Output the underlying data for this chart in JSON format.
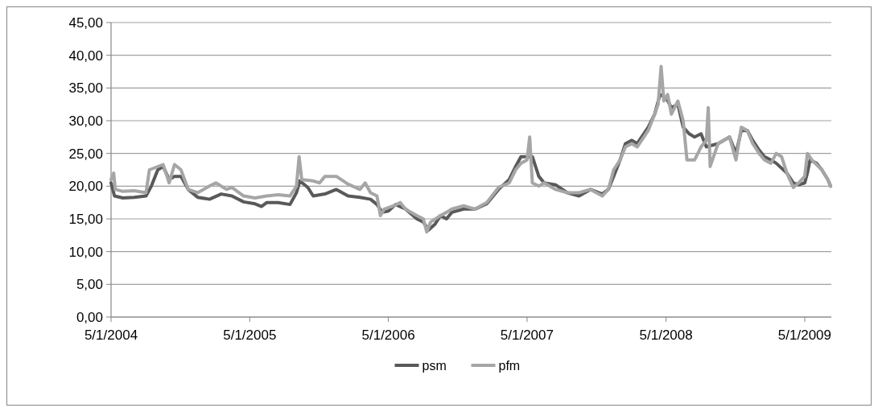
{
  "chart_data": {
    "type": "line",
    "grid": "y",
    "legend": "bottom",
    "marker": "none",
    "line_style": "solid",
    "xlim": [
      "2004-05-01",
      "2009-07-10"
    ],
    "xticks": [
      {
        "value": "2004-05-01",
        "label": "5/1/2004"
      },
      {
        "value": "2005-05-01",
        "label": "5/1/2005"
      },
      {
        "value": "2006-05-01",
        "label": "5/1/2006"
      },
      {
        "value": "2007-05-01",
        "label": "5/1/2007"
      },
      {
        "value": "2008-05-01",
        "label": "5/1/2008"
      },
      {
        "value": "2009-05-01",
        "label": "5/1/2009"
      }
    ],
    "ylim": [
      0,
      45
    ],
    "yticks": [
      {
        "value": 0,
        "label": "0,00"
      },
      {
        "value": 5,
        "label": "5,00"
      },
      {
        "value": 10,
        "label": "10,00"
      },
      {
        "value": 15,
        "label": "15,00"
      },
      {
        "value": 20,
        "label": "20,00"
      },
      {
        "value": 25,
        "label": "25,00"
      },
      {
        "value": 30,
        "label": "30,00"
      },
      {
        "value": 35,
        "label": "35,00"
      },
      {
        "value": 40,
        "label": "40,00"
      },
      {
        "value": 45,
        "label": "45,00"
      }
    ],
    "series": [
      {
        "name": "psm",
        "color": "#595959",
        "x": [
          "2004-05-01",
          "2004-05-10",
          "2004-06-01",
          "2004-07-01",
          "2004-08-01",
          "2004-08-15",
          "2004-09-01",
          "2004-09-15",
          "2004-10-01",
          "2004-10-15",
          "2004-11-01",
          "2004-11-20",
          "2004-12-15",
          "2005-01-15",
          "2005-02-15",
          "2005-03-15",
          "2005-04-15",
          "2005-05-15",
          "2005-06-01",
          "2005-06-15",
          "2005-07-15",
          "2005-08-15",
          "2005-09-01",
          "2005-09-10",
          "2005-10-01",
          "2005-10-15",
          "2005-11-15",
          "2005-12-15",
          "2006-01-15",
          "2006-02-15",
          "2006-03-15",
          "2006-04-01",
          "2006-04-15",
          "2006-05-01",
          "2006-05-20",
          "2006-06-15",
          "2006-07-15",
          "2006-08-01",
          "2006-08-15",
          "2006-09-01",
          "2006-09-15",
          "2006-10-01",
          "2006-10-15",
          "2006-11-15",
          "2006-12-15",
          "2007-01-15",
          "2007-02-15",
          "2007-03-15",
          "2007-04-01",
          "2007-04-15",
          "2007-05-01",
          "2007-05-15",
          "2007-06-01",
          "2007-06-15",
          "2007-07-15",
          "2007-08-15",
          "2007-09-15",
          "2007-10-15",
          "2007-11-15",
          "2007-12-01",
          "2007-12-15",
          "2008-01-01",
          "2008-01-15",
          "2008-02-01",
          "2008-02-15",
          "2008-03-15",
          "2008-04-01",
          "2008-04-15",
          "2008-05-01",
          "2008-05-15",
          "2008-06-01",
          "2008-06-15",
          "2008-07-01",
          "2008-07-15",
          "2008-08-01",
          "2008-08-15",
          "2008-09-15",
          "2008-10-15",
          "2008-11-01",
          "2008-11-15",
          "2008-12-01",
          "2008-12-15",
          "2009-01-01",
          "2009-01-15",
          "2009-02-01",
          "2009-02-15",
          "2009-03-15",
          "2009-04-01",
          "2009-04-15",
          "2009-05-01",
          "2009-05-08",
          "2009-05-15",
          "2009-06-01",
          "2009-06-15",
          "2009-07-01",
          "2009-07-08"
        ],
        "values": [
          20.5,
          18.5,
          18.2,
          18.3,
          18.5,
          20,
          22.5,
          23,
          21,
          21.5,
          21.5,
          19.5,
          18.3,
          18,
          18.8,
          18.5,
          17.6,
          17.3,
          16.9,
          17.5,
          17.5,
          17.2,
          19,
          20.8,
          19.8,
          18.5,
          18.8,
          19.5,
          18.5,
          18.3,
          18,
          17.2,
          16,
          16.2,
          17.2,
          16.5,
          15,
          14.5,
          13.3,
          14.2,
          15.5,
          15,
          16,
          16.5,
          16.5,
          17.3,
          19.5,
          21,
          23,
          24.5,
          24.5,
          24.5,
          21.5,
          20.5,
          20.2,
          19,
          18.5,
          19.5,
          18.8,
          19.5,
          21.5,
          24,
          26.5,
          27,
          26.5,
          29,
          31,
          34,
          33.5,
          32,
          32.5,
          29,
          28,
          27.5,
          28,
          26,
          26.5,
          27.5,
          25,
          28.5,
          28.5,
          27,
          25.5,
          24.5,
          24,
          23.5,
          22,
          20.5,
          20.2,
          20.5,
          22,
          24,
          23.5,
          22.5,
          21,
          20
        ]
      },
      {
        "name": "pfm",
        "color": "#a6a6a6",
        "x": [
          "2004-05-01",
          "2004-05-08",
          "2004-05-12",
          "2004-06-01",
          "2004-07-01",
          "2004-08-01",
          "2004-08-10",
          "2004-09-15",
          "2004-10-01",
          "2004-10-15",
          "2004-11-01",
          "2004-11-20",
          "2004-12-15",
          "2005-01-15",
          "2005-02-01",
          "2005-03-01",
          "2005-03-15",
          "2005-04-15",
          "2005-05-15",
          "2005-06-15",
          "2005-07-15",
          "2005-08-15",
          "2005-09-01",
          "2005-09-08",
          "2005-09-15",
          "2005-10-15",
          "2005-11-01",
          "2005-11-15",
          "2005-12-15",
          "2006-01-15",
          "2006-02-15",
          "2006-03-01",
          "2006-03-15",
          "2006-04-01",
          "2006-04-10",
          "2006-04-20",
          "2006-05-15",
          "2006-06-01",
          "2006-06-15",
          "2006-07-15",
          "2006-08-01",
          "2006-08-10",
          "2006-08-20",
          "2006-09-15",
          "2006-10-01",
          "2006-10-15",
          "2006-11-15",
          "2006-12-15",
          "2007-01-15",
          "2007-02-15",
          "2007-03-15",
          "2007-04-01",
          "2007-04-15",
          "2007-05-01",
          "2007-05-08",
          "2007-05-15",
          "2007-06-01",
          "2007-06-15",
          "2007-07-15",
          "2007-08-15",
          "2007-09-15",
          "2007-10-15",
          "2007-11-15",
          "2007-12-01",
          "2007-12-15",
          "2008-01-01",
          "2008-01-15",
          "2008-02-01",
          "2008-02-15",
          "2008-03-15",
          "2008-04-01",
          "2008-04-10",
          "2008-04-18",
          "2008-04-25",
          "2008-05-05",
          "2008-05-15",
          "2008-06-01",
          "2008-06-15",
          "2008-06-25",
          "2008-07-15",
          "2008-08-01",
          "2008-08-15",
          "2008-08-20",
          "2008-08-25",
          "2008-09-15",
          "2008-10-15",
          "2008-11-01",
          "2008-11-15",
          "2008-12-01",
          "2008-12-15",
          "2009-01-01",
          "2009-01-15",
          "2009-02-01",
          "2009-02-15",
          "2009-03-01",
          "2009-03-15",
          "2009-04-01",
          "2009-04-15",
          "2009-05-01",
          "2009-05-08",
          "2009-05-20",
          "2009-06-15",
          "2009-07-01",
          "2009-07-08"
        ],
        "values": [
          21,
          22,
          19.5,
          19.2,
          19.3,
          19,
          22.5,
          23.3,
          20.5,
          23.3,
          22.5,
          19.5,
          19,
          20,
          20.5,
          19.5,
          19.8,
          18.5,
          18.2,
          18.5,
          18.7,
          18.5,
          20,
          24.5,
          21,
          20.8,
          20.5,
          21.5,
          21.5,
          20.3,
          19.5,
          20.5,
          19,
          18.5,
          15.5,
          16.5,
          17,
          17.5,
          16.5,
          15.5,
          15,
          13,
          14.5,
          15.5,
          16,
          16.5,
          17,
          16.5,
          17.5,
          19.8,
          20.5,
          22.5,
          23.5,
          24,
          27.5,
          20.5,
          20,
          20.5,
          19.5,
          19,
          19,
          19.5,
          18.5,
          19.5,
          22.5,
          24,
          26,
          26.5,
          26,
          28.5,
          31,
          32.5,
          38.3,
          33,
          34,
          31,
          33,
          30,
          24,
          24,
          26,
          27,
          32,
          23,
          26.5,
          27.5,
          24,
          29,
          28.5,
          26.5,
          25,
          24,
          23.5,
          25,
          24.5,
          22,
          19.8,
          20.5,
          21.5,
          25,
          24,
          22.5,
          21,
          20
        ]
      }
    ]
  }
}
